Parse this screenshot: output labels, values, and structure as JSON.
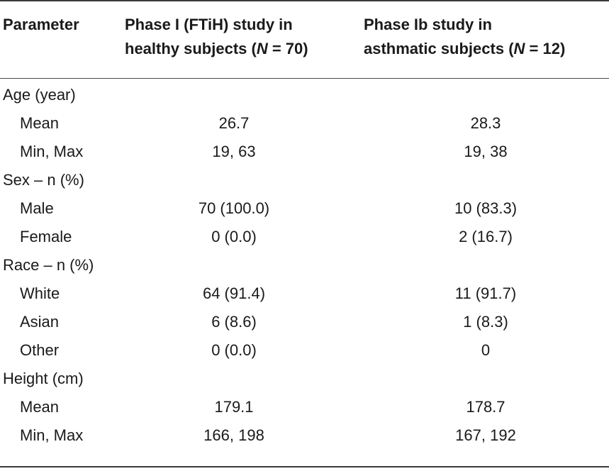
{
  "table": {
    "headers": {
      "parameter": "Parameter",
      "col1_line1": "Phase I (FTiH) study in",
      "col1_line2_pre": "healthy subjects (",
      "col1_n": "N",
      "col1_line2_post": " = 70)",
      "col2_line1": "Phase Ib study in",
      "col2_line2_pre": "asthmatic subjects (",
      "col2_n": "N",
      "col2_line2_post": " = 12)"
    },
    "rows": [
      {
        "label": "Age (year)",
        "c1": "",
        "c2": "",
        "sub": false
      },
      {
        "label": "Mean",
        "c1": "26.7",
        "c2": "28.3",
        "sub": true
      },
      {
        "label": "Min, Max",
        "c1": "19, 63",
        "c2": "19, 38",
        "sub": true
      },
      {
        "label": "Sex – n (%)",
        "c1": "",
        "c2": "",
        "sub": false
      },
      {
        "label": "Male",
        "c1": "70 (100.0)",
        "c2": "10 (83.3)",
        "sub": true
      },
      {
        "label": "Female",
        "c1": "0 (0.0)",
        "c2": "2 (16.7)",
        "sub": true
      },
      {
        "label": "Race – n (%)",
        "c1": "",
        "c2": "",
        "sub": false
      },
      {
        "label": "White",
        "c1": "64 (91.4)",
        "c2": "11 (91.7)",
        "sub": true
      },
      {
        "label": "Asian",
        "c1": "6 (8.6)",
        "c2": "1 (8.3)",
        "sub": true
      },
      {
        "label": "Other",
        "c1": "0 (0.0)",
        "c2": "0",
        "sub": true
      },
      {
        "label": "Height (cm)",
        "c1": "",
        "c2": "",
        "sub": false
      },
      {
        "label": "Mean",
        "c1": "179.1",
        "c2": "178.7",
        "sub": true
      },
      {
        "label": "Min, Max",
        "c1": "166, 198",
        "c2": "167, 192",
        "sub": true
      }
    ]
  }
}
